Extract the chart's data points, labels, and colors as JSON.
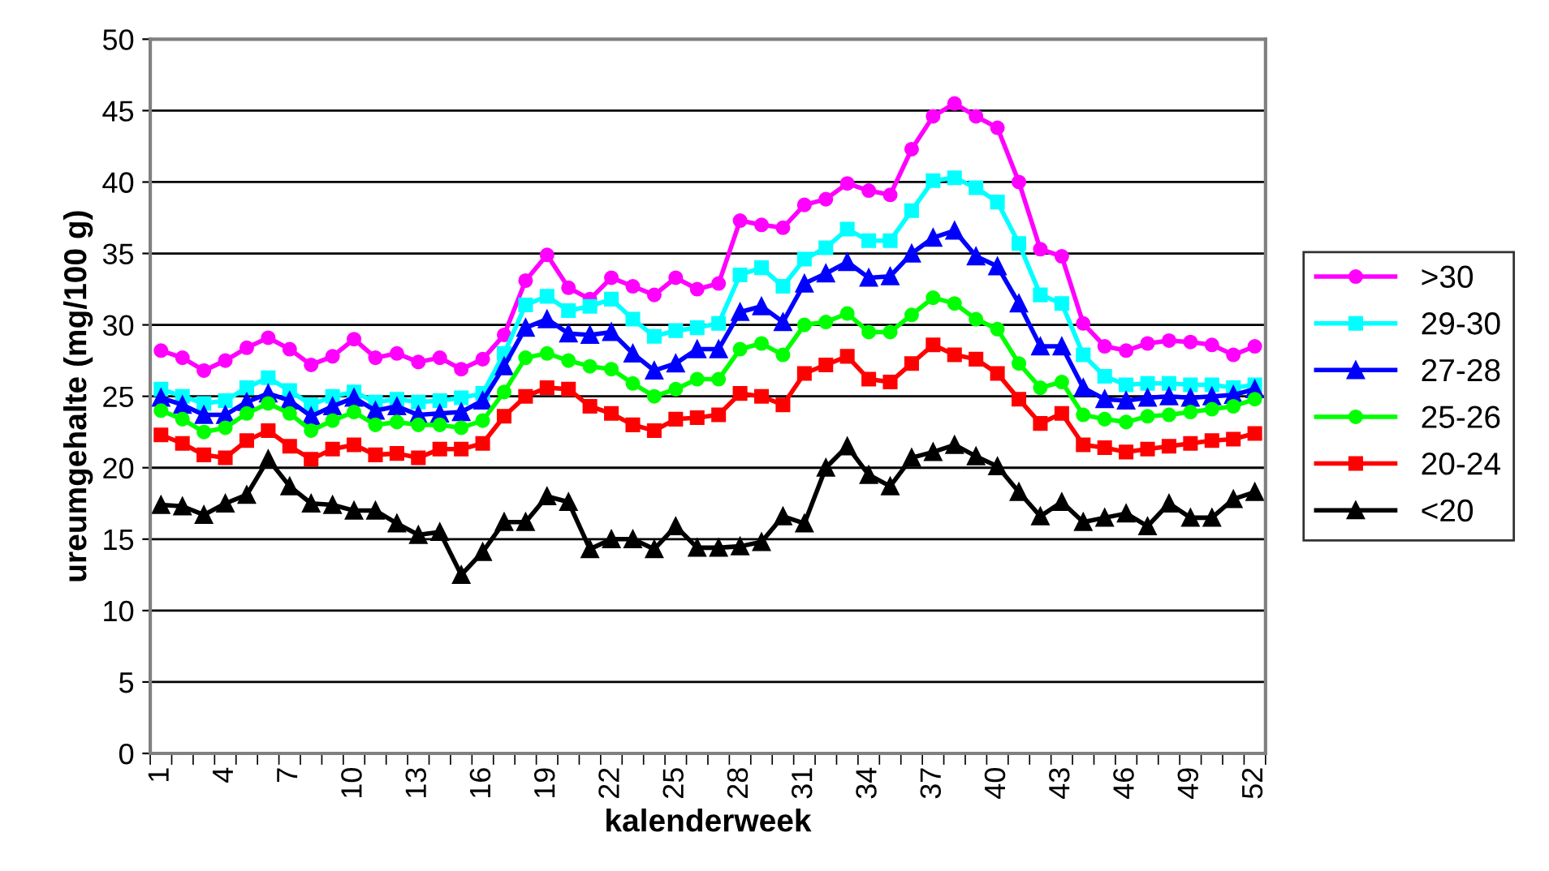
{
  "chart_data": {
    "type": "line",
    "xlabel": "kalenderweek",
    "ylabel": "ureumgehalte (mg/100 g)",
    "categories": [
      "1",
      null,
      null,
      "4",
      null,
      null,
      "7",
      null,
      null,
      "10",
      null,
      null,
      "13",
      null,
      null,
      "16",
      null,
      null,
      "19",
      null,
      null,
      "22",
      null,
      null,
      "25",
      null,
      null,
      "28",
      null,
      null,
      "31",
      null,
      null,
      "34",
      null,
      null,
      "37",
      null,
      null,
      "40",
      null,
      null,
      "43",
      null,
      null,
      "46",
      null,
      null,
      "49",
      null,
      null,
      "52"
    ],
    "ylim": [
      0,
      50
    ],
    "yticks": [
      0,
      5,
      10,
      15,
      20,
      25,
      30,
      35,
      40,
      45,
      50
    ],
    "grid": "y",
    "legend": "right",
    "line_style": "solid",
    "series": [
      {
        "name": ">30",
        "color": "#ff00ff",
        "marker": "circle",
        "values": [
          28.2,
          27.7,
          26.8,
          27.5,
          28.4,
          29.1,
          28.3,
          27.2,
          27.8,
          29.0,
          27.7,
          28.0,
          27.4,
          27.7,
          26.9,
          27.6,
          29.3,
          33.1,
          34.9,
          32.6,
          31.8,
          33.3,
          32.7,
          32.1,
          33.3,
          32.5,
          32.9,
          37.3,
          37.0,
          36.8,
          38.4,
          38.8,
          39.9,
          39.4,
          39.1,
          42.3,
          44.6,
          45.5,
          44.6,
          43.8,
          40.0,
          35.3,
          34.8,
          30.1,
          28.5,
          28.2,
          28.7,
          28.9,
          28.8,
          28.6,
          27.9,
          28.5
        ]
      },
      {
        "name": "29-30",
        "color": "#00ffff",
        "marker": "square",
        "values": [
          25.5,
          25.0,
          24.5,
          24.7,
          25.6,
          26.3,
          25.4,
          24.4,
          25.0,
          25.3,
          24.6,
          24.8,
          24.6,
          24.7,
          24.9,
          25.2,
          28.0,
          31.4,
          32.0,
          31.0,
          31.3,
          31.8,
          30.4,
          29.2,
          29.6,
          29.8,
          30.1,
          33.5,
          34.0,
          32.7,
          34.6,
          35.4,
          36.7,
          35.9,
          35.9,
          38.0,
          40.1,
          40.3,
          39.6,
          38.6,
          35.7,
          32.1,
          31.5,
          27.9,
          26.4,
          25.8,
          25.9,
          25.9,
          25.8,
          25.8,
          25.6,
          25.8
        ]
      },
      {
        "name": "27-28",
        "color": "#0000ff",
        "marker": "triangle",
        "values": [
          24.9,
          24.4,
          23.7,
          23.7,
          24.6,
          25.2,
          24.7,
          23.6,
          24.3,
          24.9,
          24.0,
          24.3,
          23.7,
          23.8,
          23.9,
          24.7,
          27.1,
          29.8,
          30.4,
          29.4,
          29.3,
          29.5,
          28.0,
          26.8,
          27.3,
          28.3,
          28.3,
          30.9,
          31.3,
          30.2,
          32.9,
          33.6,
          34.4,
          33.3,
          33.4,
          35.0,
          36.1,
          36.6,
          34.8,
          34.1,
          31.5,
          28.5,
          28.5,
          25.6,
          24.8,
          24.7,
          24.9,
          25.0,
          24.9,
          25.0,
          25.1,
          25.5
        ]
      },
      {
        "name": "25-26",
        "color": "#00ff00",
        "marker": "circle",
        "values": [
          24.0,
          23.4,
          22.5,
          22.8,
          23.8,
          24.5,
          23.8,
          22.6,
          23.3,
          23.9,
          23.0,
          23.2,
          23.0,
          23.0,
          22.8,
          23.3,
          25.3,
          27.7,
          28.0,
          27.5,
          27.1,
          26.9,
          25.9,
          25.0,
          25.5,
          26.2,
          26.2,
          28.3,
          28.7,
          27.9,
          30.0,
          30.2,
          30.8,
          29.5,
          29.5,
          30.7,
          31.9,
          31.5,
          30.4,
          29.7,
          27.3,
          25.6,
          26.0,
          23.7,
          23.4,
          23.2,
          23.6,
          23.7,
          23.9,
          24.1,
          24.3,
          24.8
        ]
      },
      {
        "name": "20-24",
        "color": "#ff0000",
        "marker": "square",
        "values": [
          22.3,
          21.7,
          20.9,
          20.7,
          21.9,
          22.6,
          21.5,
          20.6,
          21.3,
          21.6,
          20.9,
          21.0,
          20.7,
          21.3,
          21.3,
          21.7,
          23.6,
          25.0,
          25.6,
          25.5,
          24.3,
          23.8,
          23.0,
          22.6,
          23.4,
          23.5,
          23.7,
          25.2,
          25.0,
          24.4,
          26.6,
          27.2,
          27.8,
          26.2,
          26.0,
          27.3,
          28.6,
          27.9,
          27.6,
          26.6,
          24.8,
          23.1,
          23.8,
          21.6,
          21.4,
          21.1,
          21.3,
          21.5,
          21.7,
          21.9,
          22.0,
          22.4
        ]
      },
      {
        "name": "<20",
        "color": "#000000",
        "marker": "triangle",
        "values": [
          17.4,
          17.3,
          16.7,
          17.5,
          18.1,
          20.6,
          18.7,
          17.5,
          17.4,
          17.0,
          17.0,
          16.1,
          15.3,
          15.5,
          12.5,
          14.1,
          16.2,
          16.2,
          18.0,
          17.6,
          14.3,
          15.0,
          15.0,
          14.3,
          15.9,
          14.4,
          14.4,
          14.5,
          14.8,
          16.6,
          16.1,
          20.0,
          21.5,
          19.5,
          18.7,
          20.7,
          21.1,
          21.6,
          20.8,
          20.1,
          18.3,
          16.6,
          17.6,
          16.2,
          16.5,
          16.8,
          15.9,
          17.5,
          16.5,
          16.5,
          17.8,
          18.3
        ]
      }
    ]
  }
}
